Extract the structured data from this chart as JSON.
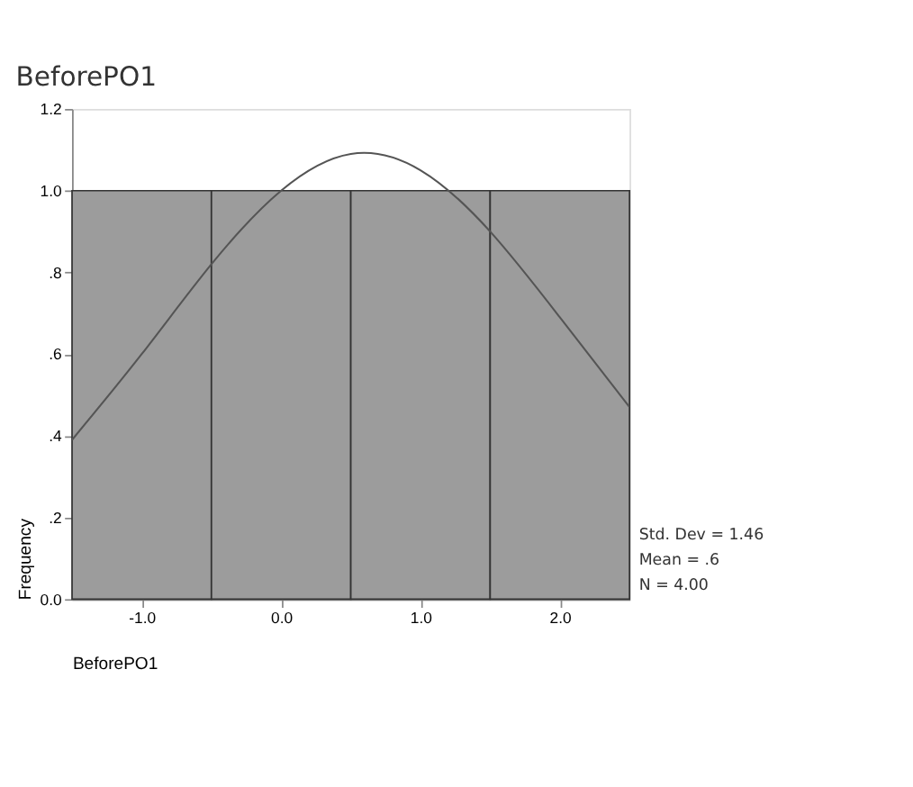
{
  "chart_data": {
    "type": "histogram",
    "title": "BeforePO1",
    "xlabel": "BeforePO1",
    "ylabel": "Frequency",
    "bins": [
      -1.5,
      -0.5,
      0.5,
      1.5,
      2.5
    ],
    "values": [
      1,
      1,
      1,
      1
    ],
    "color": "#9c9c9c",
    "series": [
      {
        "type": "line",
        "color": "#555555",
        "x": [
          -1.5,
          -1.0,
          -0.5,
          0.0,
          0.5,
          1.0,
          1.5,
          2.0,
          2.5
        ],
        "values": [
          0.39,
          0.6,
          0.82,
          1.0,
          1.09,
          1.05,
          0.9,
          0.69,
          0.47
        ]
      }
    ],
    "xlim": [
      -1.5,
      2.5
    ],
    "xticks": [
      {
        "value": -1,
        "label": "-1.0"
      },
      {
        "value": 0,
        "label": "0.0"
      },
      {
        "value": 1,
        "label": "1.0"
      },
      {
        "value": 2,
        "label": "2.0"
      }
    ],
    "ylim": [
      0,
      1.2
    ],
    "yticks": [
      {
        "value": 0,
        "label": "0.0"
      },
      {
        "value": 0.2,
        "label": ".2"
      },
      {
        "value": 0.4,
        "label": ".4"
      },
      {
        "value": 0.6,
        "label": ".6"
      },
      {
        "value": 0.8,
        "label": ".8"
      },
      {
        "value": 1.0,
        "label": "1.0"
      },
      {
        "value": 1.2,
        "label": "1.2"
      }
    ],
    "grid": false,
    "annotations": [
      "Std. Dev = 1.46",
      "Mean = .6",
      "N = 4.00"
    ]
  }
}
